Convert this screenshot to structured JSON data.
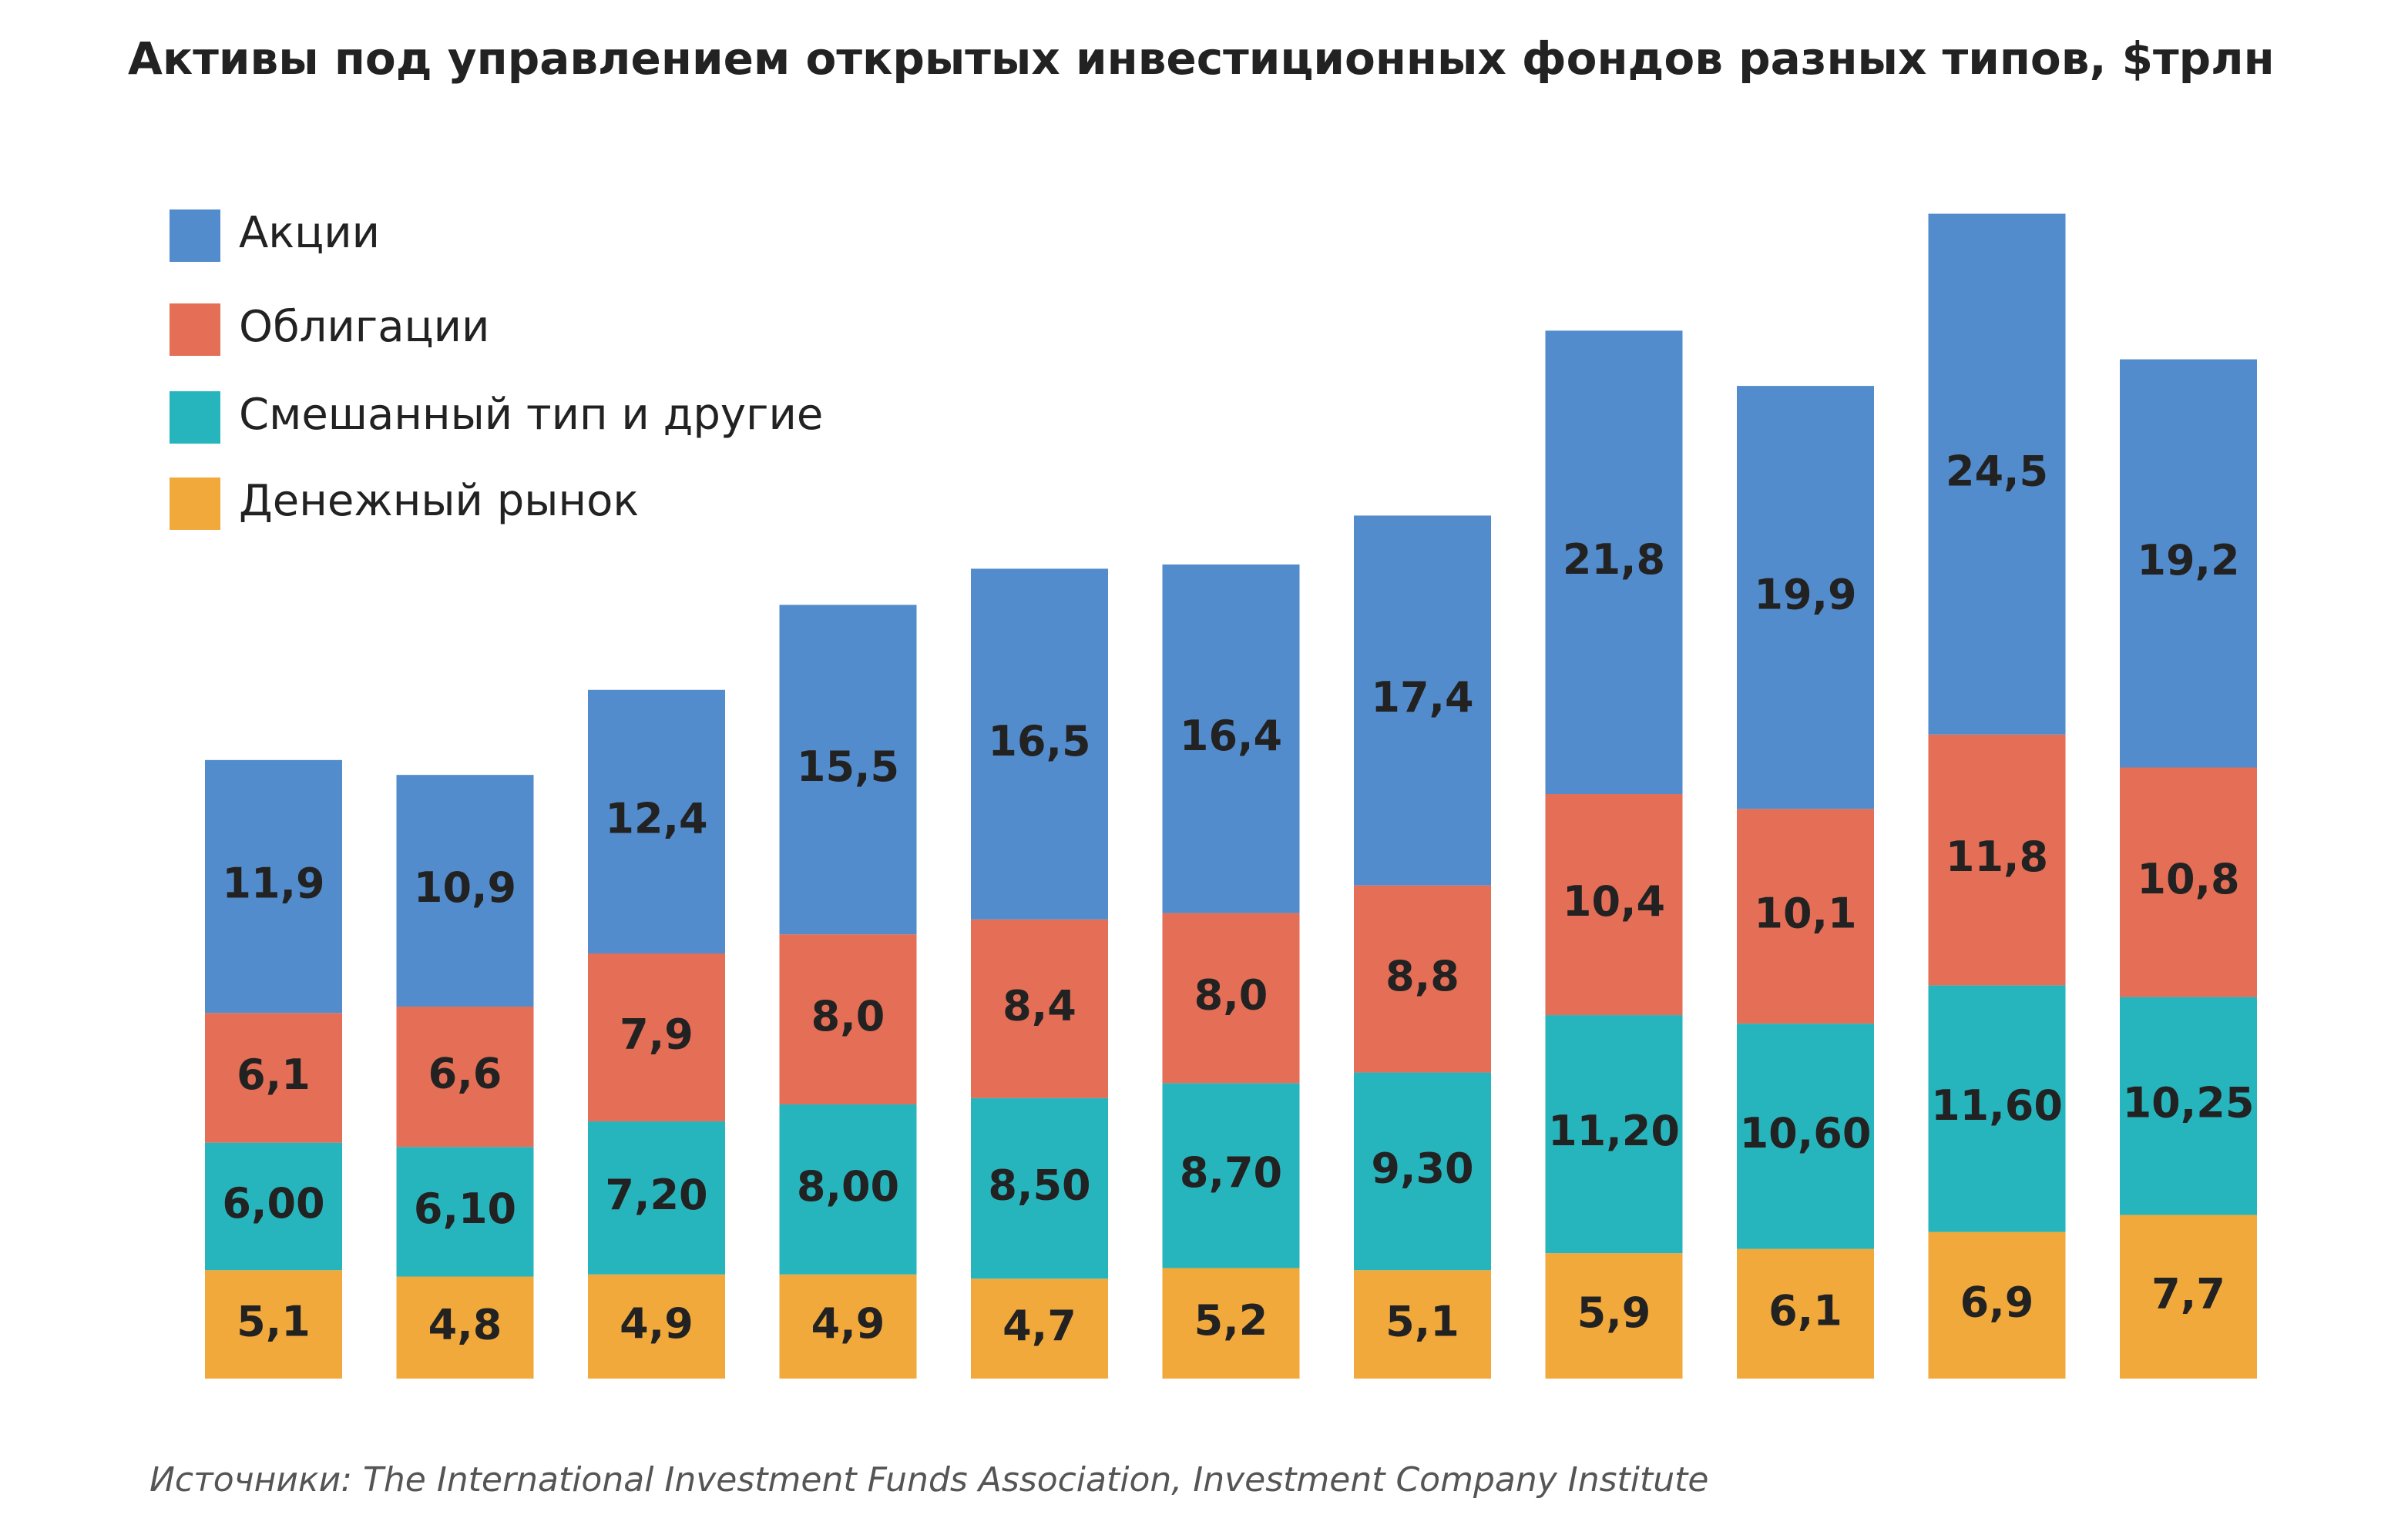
{
  "chart_data": {
    "type": "stacked-bar",
    "title": "Активы под управлением открытых инвестиционных фондов разных типов, $трлн",
    "source": "Источники: The International Investment Funds Association, Investment Company Institute",
    "legend": "top-left",
    "series": [
      {
        "name": "Акции",
        "color": "#538ccc",
        "values": [
          11.9,
          10.9,
          12.4,
          15.5,
          16.5,
          16.4,
          17.4,
          21.8,
          19.9,
          24.5,
          19.2
        ],
        "value_labels": [
          "11,9",
          "10,9",
          "12,4",
          "15,5",
          "16,5",
          "16,4",
          "17,4",
          "21,8",
          "19,9",
          "24,5",
          "19,2"
        ]
      },
      {
        "name": "Облигации",
        "color": "#e46e56",
        "values": [
          6.1,
          6.6,
          7.9,
          8.0,
          8.4,
          8.0,
          8.8,
          10.4,
          10.1,
          11.8,
          10.8
        ],
        "value_labels": [
          "6,1",
          "6,6",
          "7,9",
          "8,0",
          "8,4",
          "8,0",
          "8,8",
          "10,4",
          "10,1",
          "11,8",
          "10,8"
        ]
      },
      {
        "name": "Смешанный тип и другие",
        "color": "#27b5bd",
        "values": [
          6.0,
          6.1,
          7.2,
          8.0,
          8.5,
          8.7,
          9.3,
          11.2,
          10.6,
          11.6,
          10.25
        ],
        "value_labels": [
          "6,00",
          "6,10",
          "7,20",
          "8,00",
          "8,50",
          "8,70",
          "9,30",
          "11,20",
          "10,60",
          "11,60",
          "10,25"
        ]
      },
      {
        "name": "Денежный рынок",
        "color": "#f2a93b",
        "values": [
          5.1,
          4.8,
          4.9,
          4.9,
          4.7,
          5.2,
          5.1,
          5.9,
          6.1,
          6.9,
          7.7
        ],
        "value_labels": [
          "5,1",
          "4,8",
          "4,9",
          "4,9",
          "4,7",
          "5,2",
          "5,1",
          "5,9",
          "6,1",
          "6,9",
          "7,7"
        ]
      }
    ]
  }
}
